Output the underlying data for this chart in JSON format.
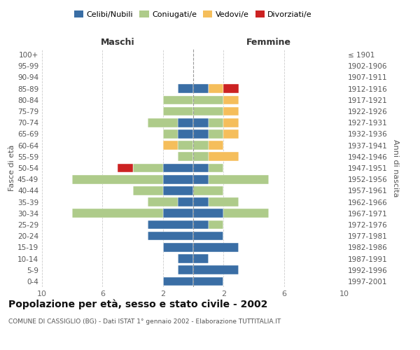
{
  "age_groups": [
    "0-4",
    "5-9",
    "10-14",
    "15-19",
    "20-24",
    "25-29",
    "30-34",
    "35-39",
    "40-44",
    "45-49",
    "50-54",
    "55-59",
    "60-64",
    "65-69",
    "70-74",
    "75-79",
    "80-84",
    "85-89",
    "90-94",
    "95-99",
    "100+"
  ],
  "birth_years": [
    "1997-2001",
    "1992-1996",
    "1987-1991",
    "1982-1986",
    "1977-1981",
    "1972-1976",
    "1967-1971",
    "1962-1966",
    "1957-1961",
    "1952-1956",
    "1947-1951",
    "1942-1946",
    "1937-1941",
    "1932-1936",
    "1927-1931",
    "1922-1926",
    "1917-1921",
    "1912-1916",
    "1907-1911",
    "1902-1906",
    "≤ 1901"
  ],
  "male": {
    "celibi": [
      2,
      1,
      1,
      2,
      3,
      3,
      2,
      1,
      2,
      2,
      2,
      0,
      0,
      1,
      1,
      0,
      0,
      1,
      0,
      0,
      0
    ],
    "coniugati": [
      0,
      0,
      0,
      0,
      0,
      0,
      6,
      2,
      2,
      6,
      2,
      1,
      1,
      1,
      2,
      2,
      2,
      0,
      0,
      0,
      0
    ],
    "vedovi": [
      0,
      0,
      0,
      0,
      0,
      0,
      0,
      0,
      0,
      0,
      0,
      0,
      1,
      0,
      0,
      0,
      0,
      0,
      0,
      0,
      0
    ],
    "divorziati": [
      0,
      0,
      0,
      0,
      0,
      0,
      0,
      0,
      0,
      0,
      1,
      0,
      0,
      0,
      0,
      0,
      0,
      0,
      0,
      0,
      0
    ]
  },
  "female": {
    "nubili": [
      2,
      3,
      1,
      3,
      2,
      1,
      2,
      1,
      0,
      1,
      1,
      0,
      0,
      1,
      1,
      0,
      0,
      1,
      0,
      0,
      0
    ],
    "coniugate": [
      0,
      0,
      0,
      0,
      0,
      1,
      3,
      2,
      2,
      4,
      1,
      1,
      1,
      1,
      1,
      2,
      2,
      0,
      0,
      0,
      0
    ],
    "vedove": [
      0,
      0,
      0,
      0,
      0,
      0,
      0,
      0,
      0,
      0,
      0,
      2,
      1,
      1,
      1,
      1,
      1,
      1,
      0,
      0,
      0
    ],
    "divorziate": [
      0,
      0,
      0,
      0,
      0,
      0,
      0,
      0,
      0,
      0,
      0,
      0,
      0,
      0,
      0,
      0,
      0,
      1,
      0,
      0,
      0
    ]
  },
  "colors": {
    "celibi": "#3A6EA5",
    "coniugati": "#AECB8A",
    "vedovi": "#F5BE5B",
    "divorziati": "#CC2222"
  },
  "title": "Popolazione per età, sesso e stato civile - 2002",
  "subtitle": "COMUNE DI CASSIGLIO (BG) - Dati ISTAT 1° gennaio 2002 - Elaborazione TUTTITALIA.IT",
  "xlabel_left": "Maschi",
  "xlabel_right": "Femmine",
  "ylabel_left": "Fasce di età",
  "ylabel_right": "Anni di nascita",
  "xlim": 10,
  "background_color": "#ffffff"
}
